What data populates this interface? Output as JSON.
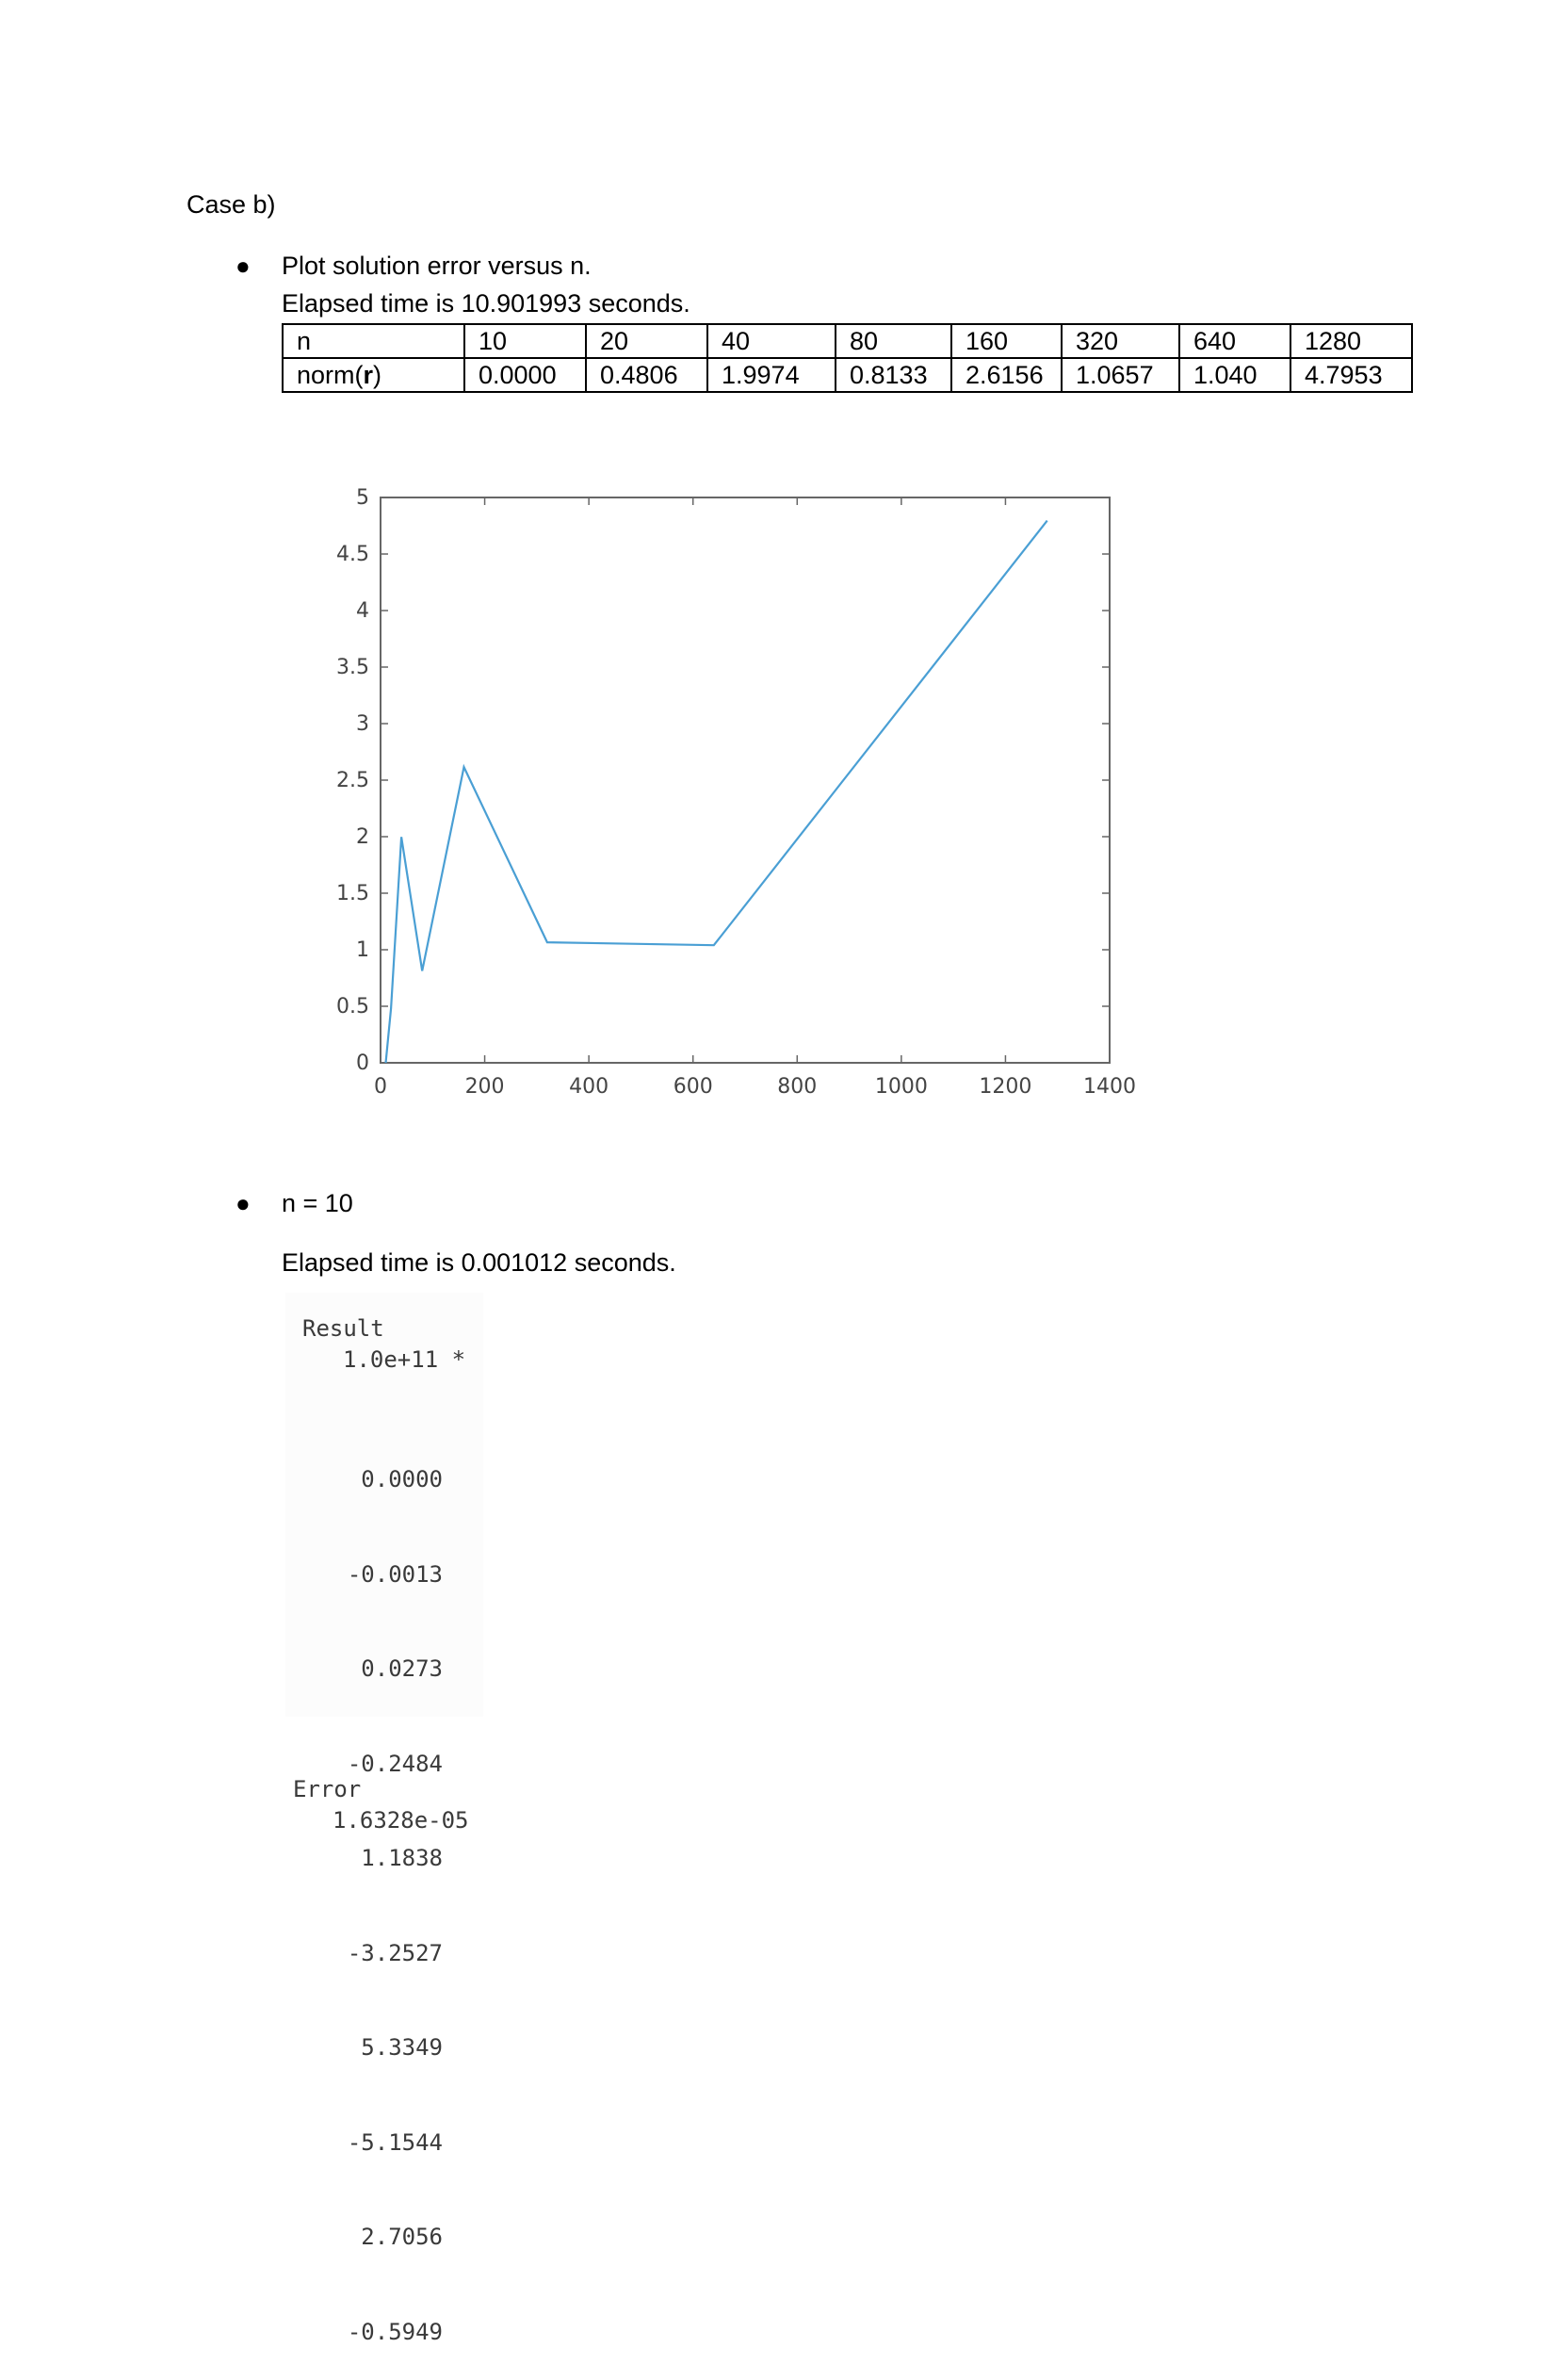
{
  "case_heading": "Case b)",
  "section1": {
    "bullet_text": "Plot solution error versus n.",
    "elapsed": "Elapsed time is 10.901993 seconds.",
    "table": {
      "rows": [
        {
          "label": "n",
          "values": [
            "10",
            "20",
            "40",
            "80",
            "160",
            "320",
            "640",
            "1280"
          ]
        },
        {
          "label_prefix": "norm(",
          "label_bold": "r",
          "label_suffix": ")",
          "values": [
            "0.0000",
            "0.4806",
            "1.9974",
            "0.8133",
            "2.6156",
            "1.0657",
            "1.040",
            "4.7953"
          ]
        }
      ]
    }
  },
  "chart_data": {
    "type": "line",
    "title": "",
    "xlabel": "",
    "ylabel": "",
    "x": [
      10,
      20,
      40,
      80,
      160,
      320,
      640,
      1280
    ],
    "series": [
      {
        "values": [
          0.0,
          0.4806,
          1.9974,
          0.8133,
          2.6156,
          1.0657,
          1.04,
          4.7953
        ],
        "color": "#4a9fd4"
      }
    ],
    "xlim": [
      0,
      1400
    ],
    "ylim": [
      0,
      5
    ],
    "xticks": [
      0,
      200,
      400,
      600,
      800,
      1000,
      1200,
      1400
    ],
    "xtick_labels": [
      "0",
      "200",
      "400",
      "600",
      "800",
      "1000",
      "1200",
      "1400"
    ],
    "yticks": [
      0,
      0.5,
      1,
      1.5,
      2,
      2.5,
      3,
      3.5,
      4,
      4.5,
      5
    ],
    "ytick_labels": [
      "0",
      "0.5",
      "1",
      "1.5",
      "2",
      "2.5",
      "3",
      "3.5",
      "4",
      "4.5",
      "5"
    ],
    "grid": false,
    "legend": "none",
    "box": true
  },
  "section2": {
    "bullet_text": "n = 10",
    "elapsed": "Elapsed time is 0.001012 seconds.",
    "result_label": "Result",
    "result_scale": "1.0e+11 *",
    "result_values": [
      "0.0000",
      "-0.0013",
      "0.0273",
      "-0.2484",
      "1.1838",
      "-3.2527",
      "5.3349",
      "-5.1544",
      "2.7056",
      "-0.5949"
    ],
    "error_label": "Error",
    "error_value": "1.6328e-05"
  }
}
